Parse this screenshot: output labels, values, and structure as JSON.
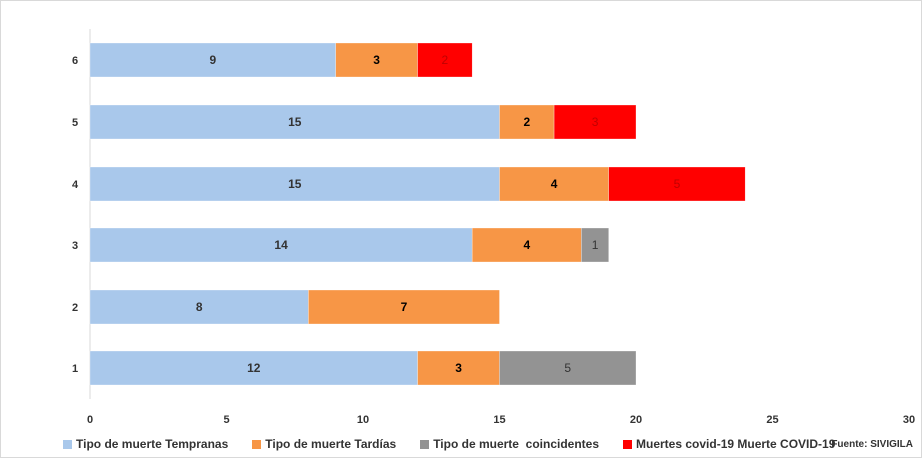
{
  "chart_data": {
    "type": "bar",
    "orientation": "horizontal",
    "stacked": true,
    "categories": [
      "1",
      "2",
      "3",
      "4",
      "5",
      "6"
    ],
    "series": [
      {
        "name": "Tipo de muerte Tempranas",
        "color": "#a9c8eb",
        "values": [
          12,
          8,
          14,
          15,
          15,
          9
        ],
        "label_color": "#333333",
        "label_bold": true
      },
      {
        "name": "Tipo de muerte Tardías",
        "color": "#f79646",
        "values": [
          3,
          7,
          4,
          4,
          2,
          3
        ],
        "label_color": "#000000",
        "label_bold": true
      },
      {
        "name": "Tipo de muerte  coincidentes",
        "color": "#939393",
        "values": [
          5,
          0,
          1,
          0,
          0,
          0
        ],
        "label_color": "#333333",
        "label_bold": false
      },
      {
        "name": "Muertes covid-19 Muerte COVID-19",
        "color": "#ff0000",
        "values": [
          0,
          0,
          0,
          5,
          3,
          2
        ],
        "label_color": "#c00000",
        "label_bold": false
      }
    ],
    "xlim": [
      0,
      30
    ],
    "xticks": [
      0,
      5,
      10,
      15,
      20,
      25,
      30
    ],
    "grid": false,
    "legend_position": "bottom",
    "title": "",
    "xlabel": "",
    "ylabel": ""
  },
  "source": "Fuente: SIVIGILA"
}
